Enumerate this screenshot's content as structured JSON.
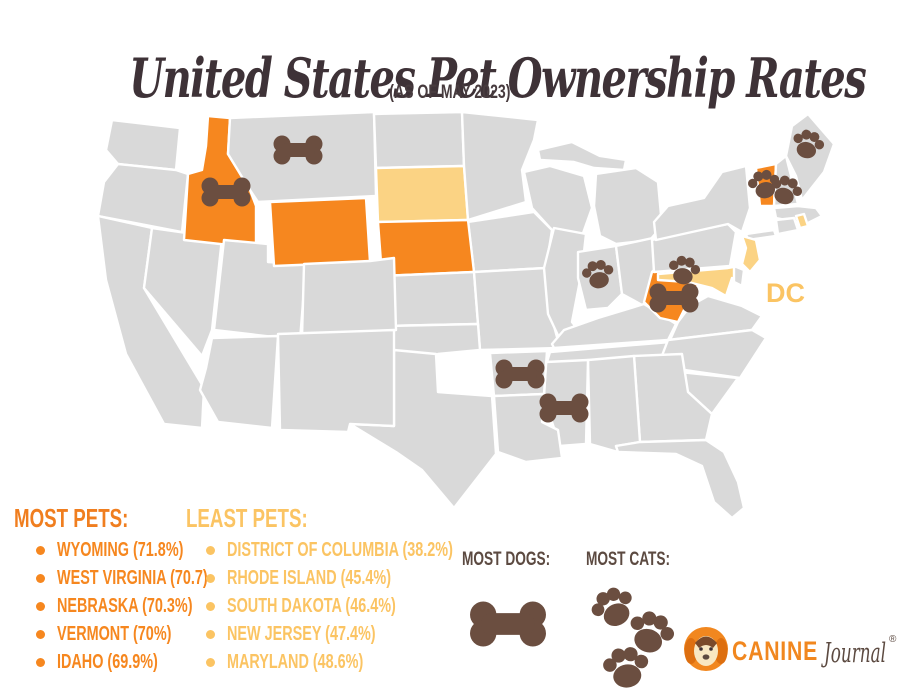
{
  "header": {
    "title": "United States Pet Ownership Rates",
    "subtitle": "(AS OF MAY 2023)"
  },
  "palette": {
    "most_pets_orange": "#F6871F",
    "heading_orange": "#F07E1F",
    "least_pets_fill": "#FBD384",
    "least_pets_text": "#FBC463",
    "state_gray": "#D9D9D9",
    "state_border": "#FFFFFF",
    "icon_brown": "#6B4E40",
    "title_dark": "#3E3237",
    "label_brown": "#5C4A41",
    "logo_orange": "#F1871F",
    "background": "#FFFFFF"
  },
  "map": {
    "dc_label": "DC",
    "most_pets_states": [
      "Idaho",
      "Wyoming",
      "Nebraska",
      "Vermont",
      "West Virginia"
    ],
    "least_pets_states": [
      "South Dakota",
      "New Jersey",
      "Maryland",
      "Rhode Island"
    ],
    "most_dogs_states": [
      "Montana",
      "Idaho",
      "Arkansas",
      "Mississippi",
      "West Virginia"
    ],
    "most_cats_states": [
      "Maine",
      "Vermont",
      "New Hampshire",
      "Indiana",
      "West Virginia"
    ]
  },
  "lists": {
    "most_pets": {
      "label": "MOST PETS:",
      "items": [
        {
          "label": "WYOMING (71.8%)",
          "state": "Wyoming",
          "rate": "71.8%"
        },
        {
          "label": "WEST VIRGINIA (70.7)",
          "state": "West Virginia",
          "rate": "70.7"
        },
        {
          "label": "NEBRASKA (70.3%)",
          "state": "Nebraska",
          "rate": "70.3%"
        },
        {
          "label": "VERMONT (70%)",
          "state": "Vermont",
          "rate": "70%"
        },
        {
          "label": "IDAHO (69.9%)",
          "state": "Idaho",
          "rate": "69.9%"
        }
      ]
    },
    "least_pets": {
      "label": "LEAST PETS:",
      "items": [
        {
          "label": "DISTRICT OF COLUMBIA (38.2%)",
          "state": "District of Columbia",
          "rate": "38.2%"
        },
        {
          "label": "RHODE ISLAND (45.4%)",
          "state": "Rhode Island",
          "rate": "45.4%"
        },
        {
          "label": "SOUTH DAKOTA (46.4%)",
          "state": "South Dakota",
          "rate": "46.4%"
        },
        {
          "label": "NEW JERSEY (47.4%)",
          "state": "New Jersey",
          "rate": "47.4%"
        },
        {
          "label": "MARYLAND (48.6%)",
          "state": "Maryland",
          "rate": "48.6%"
        }
      ]
    },
    "most_dogs_label": "MOST DOGS:",
    "most_cats_label": "MOST CATS:"
  },
  "logo": {
    "brand": "CANINE",
    "brand2": "Journal",
    "trademark": "®"
  }
}
